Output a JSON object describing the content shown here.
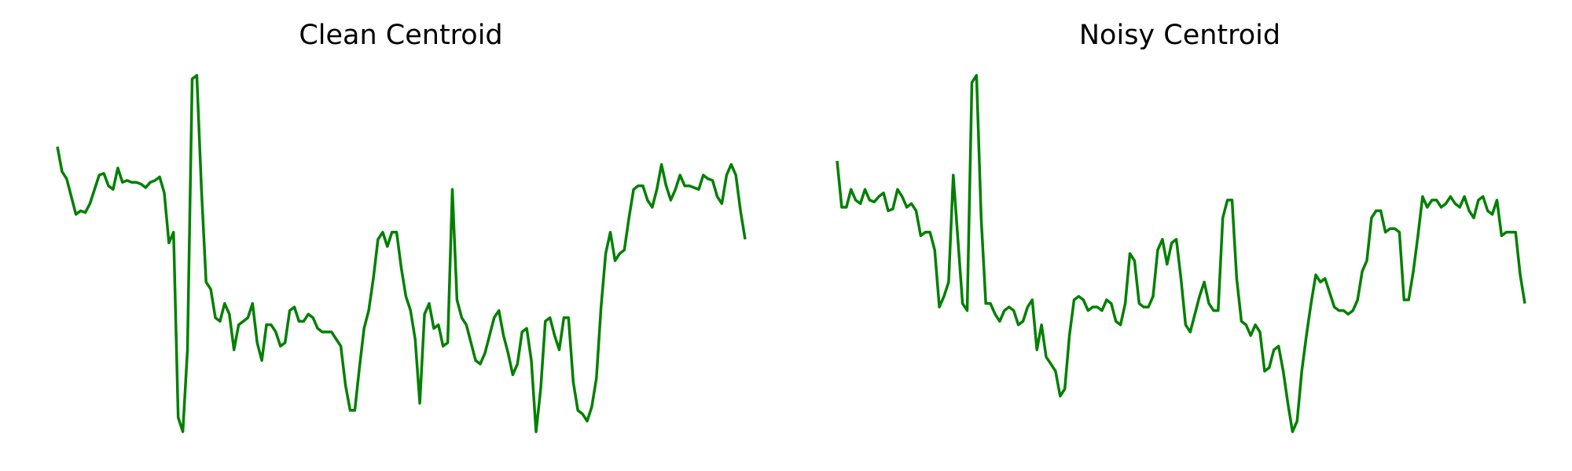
{
  "chart_data": [
    {
      "type": "line",
      "title": "Clean Centroid",
      "xlabel": "",
      "ylabel": "",
      "axis_visible": false,
      "grid": false,
      "color": "#008000",
      "ylim": [
        0,
        1
      ],
      "series": [
        {
          "values": [
            0.8,
            0.73,
            0.71,
            0.66,
            0.61,
            0.62,
            0.615,
            0.64,
            0.68,
            0.72,
            0.725,
            0.69,
            0.68,
            0.74,
            0.7,
            0.705,
            0.7,
            0.7,
            0.695,
            0.685,
            0.7,
            0.705,
            0.715,
            0.67,
            0.53,
            0.56,
            0.04,
            0.0,
            0.23,
            0.99,
            1.0,
            0.68,
            0.42,
            0.4,
            0.32,
            0.31,
            0.36,
            0.33,
            0.23,
            0.3,
            0.31,
            0.32,
            0.36,
            0.25,
            0.2,
            0.3,
            0.3,
            0.28,
            0.24,
            0.25,
            0.34,
            0.35,
            0.31,
            0.31,
            0.33,
            0.32,
            0.29,
            0.28,
            0.28,
            0.28,
            0.26,
            0.24,
            0.13,
            0.06,
            0.06,
            0.18,
            0.29,
            0.34,
            0.43,
            0.54,
            0.56,
            0.52,
            0.56,
            0.56,
            0.46,
            0.38,
            0.34,
            0.26,
            0.08,
            0.33,
            0.36,
            0.29,
            0.3,
            0.24,
            0.25,
            0.68,
            0.37,
            0.32,
            0.3,
            0.25,
            0.2,
            0.19,
            0.22,
            0.27,
            0.32,
            0.34,
            0.27,
            0.22,
            0.16,
            0.19,
            0.28,
            0.29,
            0.2,
            0.0,
            0.12,
            0.31,
            0.32,
            0.27,
            0.23,
            0.32,
            0.32,
            0.14,
            0.06,
            0.05,
            0.03,
            0.07,
            0.15,
            0.35,
            0.5,
            0.56,
            0.48,
            0.5,
            0.51,
            0.6,
            0.68,
            0.69,
            0.69,
            0.65,
            0.63,
            0.68,
            0.75,
            0.69,
            0.65,
            0.68,
            0.72,
            0.69,
            0.69,
            0.685,
            0.68,
            0.72,
            0.71,
            0.705,
            0.66,
            0.64,
            0.72,
            0.75,
            0.72,
            0.62,
            0.54
          ]
        }
      ]
    },
    {
      "type": "line",
      "title": "Noisy Centroid",
      "xlabel": "",
      "ylabel": "",
      "axis_visible": false,
      "grid": false,
      "color": "#008000",
      "ylim": [
        0,
        1
      ],
      "series": [
        {
          "values": [
            0.76,
            0.63,
            0.63,
            0.68,
            0.65,
            0.64,
            0.68,
            0.65,
            0.645,
            0.66,
            0.67,
            0.62,
            0.625,
            0.68,
            0.66,
            0.63,
            0.64,
            0.62,
            0.55,
            0.56,
            0.56,
            0.51,
            0.35,
            0.38,
            0.42,
            0.72,
            0.54,
            0.36,
            0.34,
            0.98,
            1.0,
            0.6,
            0.36,
            0.36,
            0.33,
            0.31,
            0.34,
            0.35,
            0.34,
            0.3,
            0.31,
            0.35,
            0.37,
            0.23,
            0.3,
            0.21,
            0.19,
            0.17,
            0.1,
            0.12,
            0.27,
            0.37,
            0.38,
            0.37,
            0.34,
            0.35,
            0.35,
            0.34,
            0.37,
            0.36,
            0.31,
            0.3,
            0.36,
            0.5,
            0.48,
            0.36,
            0.35,
            0.35,
            0.38,
            0.51,
            0.54,
            0.47,
            0.53,
            0.54,
            0.43,
            0.3,
            0.28,
            0.33,
            0.38,
            0.42,
            0.36,
            0.34,
            0.34,
            0.6,
            0.65,
            0.65,
            0.43,
            0.31,
            0.3,
            0.27,
            0.3,
            0.28,
            0.17,
            0.18,
            0.23,
            0.24,
            0.17,
            0.08,
            0.0,
            0.03,
            0.17,
            0.27,
            0.36,
            0.44,
            0.42,
            0.43,
            0.39,
            0.35,
            0.34,
            0.34,
            0.33,
            0.34,
            0.37,
            0.45,
            0.48,
            0.6,
            0.62,
            0.62,
            0.56,
            0.57,
            0.57,
            0.56,
            0.37,
            0.37,
            0.45,
            0.55,
            0.66,
            0.63,
            0.65,
            0.65,
            0.63,
            0.64,
            0.66,
            0.64,
            0.63,
            0.66,
            0.62,
            0.6,
            0.65,
            0.66,
            0.62,
            0.61,
            0.65,
            0.55,
            0.56,
            0.56,
            0.56,
            0.44,
            0.36
          ]
        }
      ]
    }
  ]
}
